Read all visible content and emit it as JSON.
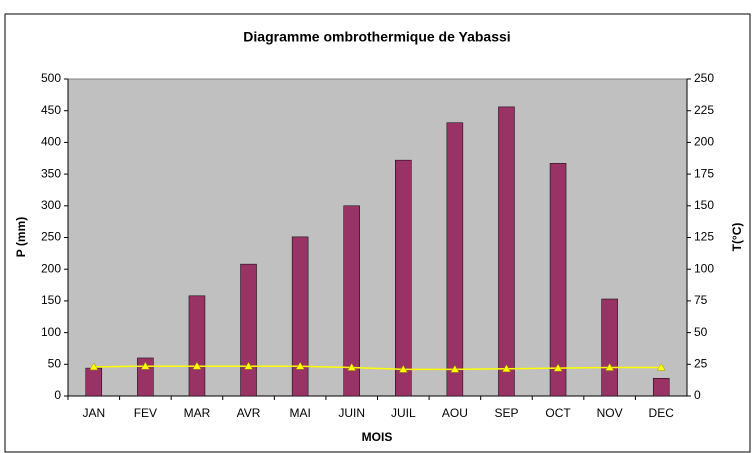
{
  "chart_data": {
    "type": "bar_line",
    "title": "Diagramme ombrothermique de Yabassi",
    "x_label": "MOIS",
    "y_label": "P (mm)",
    "y2_label": "T(°C)",
    "categories": [
      "JAN",
      "FEV",
      "MAR",
      "AVR",
      "MAI",
      "JUIN",
      "JUIL",
      "AOU",
      "SEP",
      "OCT",
      "NOV",
      "DEC"
    ],
    "series": [
      {
        "type": "bar",
        "color": "#993366",
        "values": [
          44,
          60,
          158,
          208,
          251,
          300,
          372,
          431,
          456,
          367,
          153,
          28
        ]
      },
      {
        "type": "line",
        "axis": "y2",
        "color": "#ffff00",
        "values": [
          23,
          23.5,
          23.5,
          23.5,
          23.5,
          22.5,
          21,
          21,
          21.5,
          22,
          22.5,
          22.5
        ]
      }
    ],
    "ylim": [
      0,
      500
    ],
    "yticks": [
      0,
      50,
      100,
      150,
      200,
      250,
      300,
      350,
      400,
      450,
      500
    ],
    "y2lim": [
      0,
      250
    ],
    "y2ticks": [
      0,
      25,
      50,
      75,
      100,
      125,
      150,
      175,
      200,
      225,
      250
    ],
    "plot_background": "#c0c0c0"
  }
}
